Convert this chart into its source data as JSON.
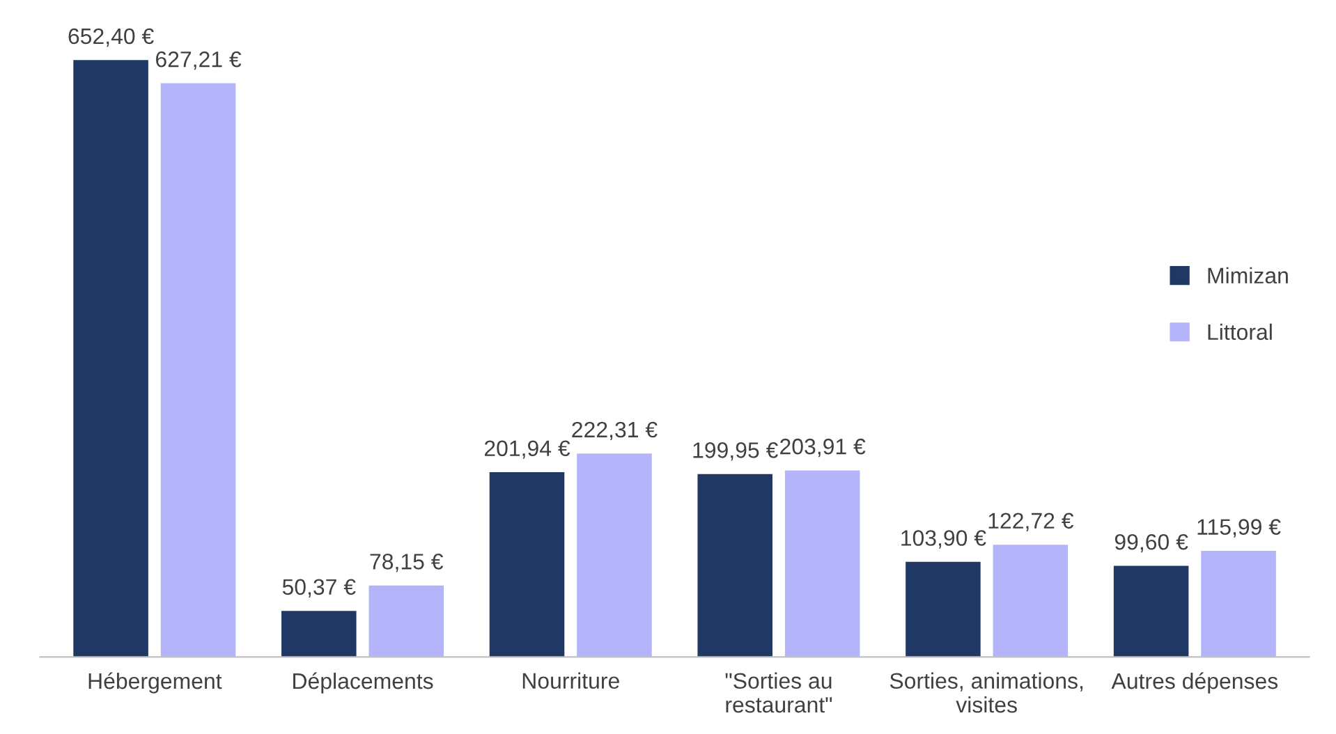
{
  "chart_data": {
    "type": "bar",
    "categories": [
      "Hébergement",
      "Déplacements",
      "Nourriture",
      "\"Sorties au\nrestaurant\"",
      "Sorties, animations,\nvisites",
      "Autres dépenses"
    ],
    "series": [
      {
        "name": "Mimizan",
        "color": "#1f3864",
        "values": [
          652.4,
          50.37,
          201.94,
          199.95,
          103.9,
          99.6
        ],
        "value_labels": [
          "652,40 €",
          "50,37 €",
          "201,94 €",
          "199,95 €",
          "103,90 €",
          "99,60 €"
        ]
      },
      {
        "name": "Littoral",
        "color": "#b4b4fa",
        "values": [
          627.21,
          78.15,
          222.31,
          203.91,
          122.72,
          115.99
        ],
        "value_labels": [
          "627,21 €",
          "78,15 €",
          "222,31 €",
          "203,91 €",
          "122,72 €",
          "115,99 €"
        ]
      }
    ],
    "legend": "right",
    "tick_labels": "x",
    "grid": false
  }
}
